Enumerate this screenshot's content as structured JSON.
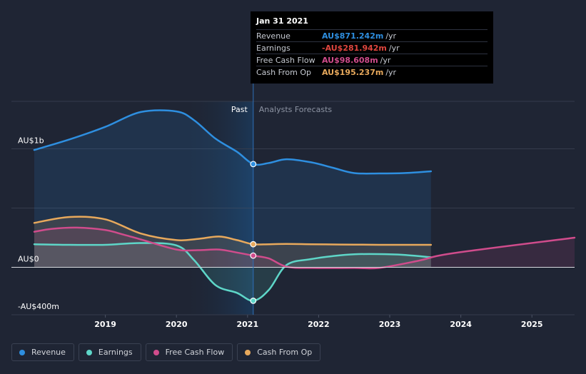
{
  "chart_data": {
    "type": "line",
    "title": "",
    "y_ticks": [
      {
        "value": 1000,
        "label": "AU$1b"
      },
      {
        "value": 0,
        "label": "AU$0"
      },
      {
        "value": -400,
        "label": "-AU$400m"
      }
    ],
    "ylim": [
      -400,
      1400
    ],
    "xlim": [
      2018.0,
      2025.6
    ],
    "x_ticks": [
      "2019",
      "2020",
      "2021",
      "2022",
      "2023",
      "2024",
      "2025"
    ],
    "x_tick_values": [
      2019,
      2020,
      2021,
      2022,
      2023,
      2024,
      2025
    ],
    "past_label": "Past",
    "forecast_label": "Analysts Forecasts",
    "divider_x": 2021.08,
    "series": [
      {
        "name": "Revenue",
        "color": "#2e8fe0",
        "x": [
          2018.0,
          2018.5,
          2019.0,
          2019.5,
          2020.0,
          2020.25,
          2020.55,
          2020.85,
          2021.08,
          2021.3,
          2021.55,
          2021.9,
          2022.2,
          2022.5,
          2022.85,
          2023.2,
          2023.58
        ],
        "values": [
          990,
          1080,
          1185,
          1310,
          1315,
          1240,
          1085,
          975,
          871,
          880,
          912,
          885,
          840,
          795,
          792,
          795,
          810
        ]
      },
      {
        "name": "Earnings",
        "color": "#5ed6c8",
        "x": [
          2018.0,
          2018.5,
          2019.0,
          2019.5,
          2020.0,
          2020.25,
          2020.55,
          2020.85,
          2021.08,
          2021.3,
          2021.55,
          2021.9,
          2022.2,
          2022.5,
          2022.85,
          2023.2,
          2023.58
        ],
        "values": [
          195,
          190,
          190,
          205,
          185,
          60,
          -150,
          -215,
          -282,
          -190,
          20,
          70,
          95,
          110,
          112,
          105,
          85
        ]
      },
      {
        "name": "Free Cash Flow",
        "color": "#d04c8c",
        "x": [
          2018.0,
          2018.25,
          2018.6,
          2019.0,
          2019.2,
          2019.5,
          2020.0,
          2020.3,
          2020.6,
          2020.85,
          2021.08,
          2021.3,
          2021.55,
          2021.9,
          2022.5,
          2022.85,
          2023.4,
          2023.9,
          2025.6
        ],
        "values": [
          300,
          325,
          335,
          315,
          285,
          235,
          150,
          145,
          150,
          125,
          99,
          75,
          5,
          -5,
          -5,
          -5,
          55,
          120,
          250
        ]
      },
      {
        "name": "Cash From Op",
        "color": "#e8a95c",
        "x": [
          2018.0,
          2018.5,
          2019.0,
          2019.5,
          2020.0,
          2020.3,
          2020.6,
          2020.85,
          2021.08,
          2021.3,
          2021.55,
          2021.9,
          2022.2,
          2022.5,
          2022.85,
          2023.2,
          2023.58
        ],
        "values": [
          375,
          425,
          405,
          285,
          230,
          240,
          260,
          230,
          195,
          195,
          197,
          195,
          193,
          192,
          190,
          190,
          190
        ]
      }
    ],
    "tooltip": {
      "date": "Jan 31 2021",
      "x": 2021.08,
      "rows": [
        {
          "label": "Revenue",
          "value": "AU$871.242m",
          "unit": "/yr",
          "color": "#2e8fe0"
        },
        {
          "label": "Earnings",
          "value": "-AU$281.942m",
          "unit": "/yr",
          "color": "#e0463e"
        },
        {
          "label": "Free Cash Flow",
          "value": "AU$98.608m",
          "unit": "/yr",
          "color": "#d04c8c"
        },
        {
          "label": "Cash From Op",
          "value": "AU$195.237m",
          "unit": "/yr",
          "color": "#e8a95c"
        }
      ]
    },
    "legend": [
      {
        "name": "Revenue",
        "color": "#2e8fe0"
      },
      {
        "name": "Earnings",
        "color": "#5ed6c8"
      },
      {
        "name": "Free Cash Flow",
        "color": "#d04c8c"
      },
      {
        "name": "Cash From Op",
        "color": "#e8a95c"
      }
    ]
  }
}
